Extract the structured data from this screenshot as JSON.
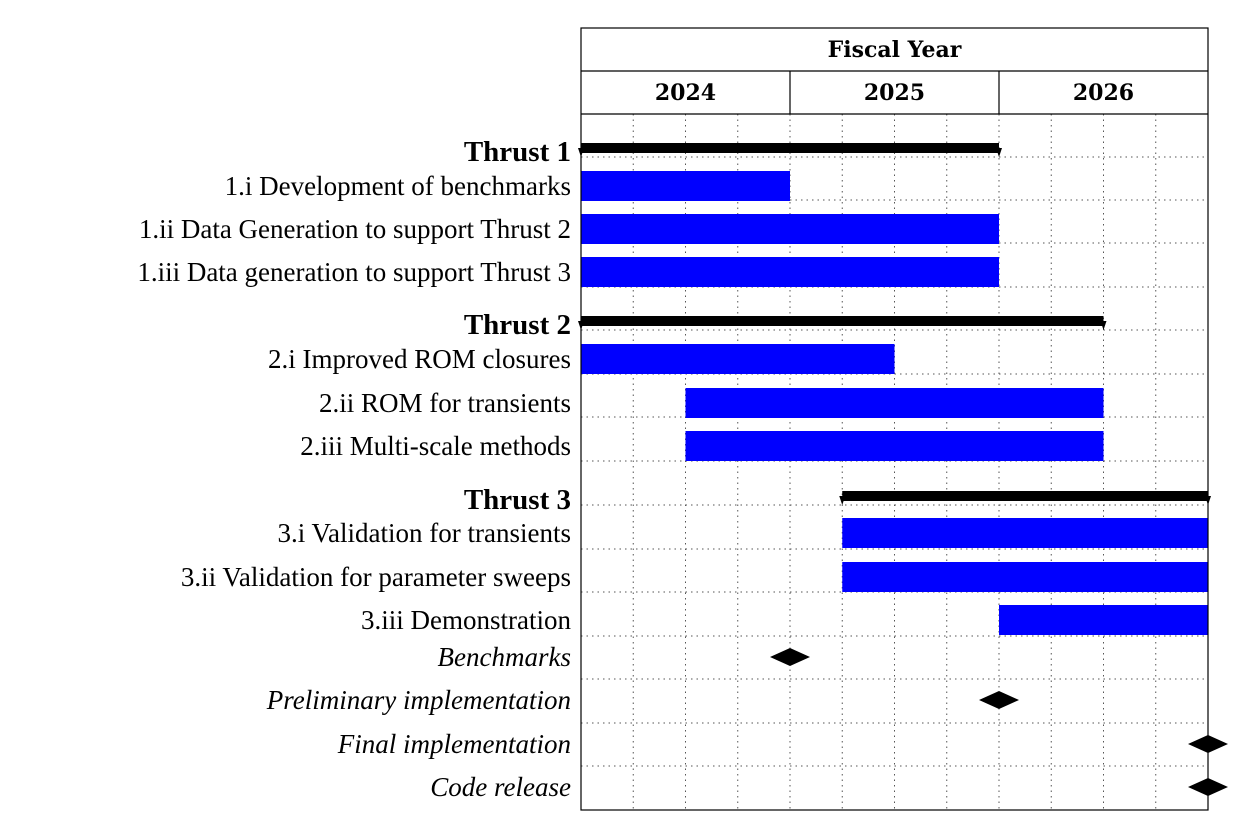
{
  "chart_data": {
    "type": "gantt",
    "header": {
      "title": "Fiscal Year",
      "years": [
        "2024",
        "2025",
        "2026"
      ]
    },
    "time_unit": "quarter",
    "domain_quarters": [
      0,
      12
    ],
    "grid": true,
    "rows": [
      {
        "kind": "group",
        "label": "Thrust 1",
        "start": 0,
        "end": 8
      },
      {
        "kind": "task",
        "label": "1.i Development of benchmarks",
        "start": 0,
        "end": 4
      },
      {
        "kind": "task",
        "label": "1.ii Data Generation to support Thrust 2",
        "start": 0,
        "end": 8
      },
      {
        "kind": "task",
        "label": "1.iii Data generation to support Thrust 3",
        "start": 0,
        "end": 8
      },
      {
        "kind": "group",
        "label": "Thrust 2",
        "start": 0,
        "end": 10
      },
      {
        "kind": "task",
        "label": "2.i Improved ROM closures",
        "start": 0,
        "end": 6
      },
      {
        "kind": "task",
        "label": "2.ii ROM for transients",
        "start": 2,
        "end": 10
      },
      {
        "kind": "task",
        "label": "2.iii Multi-scale methods",
        "start": 2,
        "end": 10
      },
      {
        "kind": "group",
        "label": "Thrust 3",
        "start": 5,
        "end": 12
      },
      {
        "kind": "task",
        "label": "3.i Validation for transients",
        "start": 5,
        "end": 12
      },
      {
        "kind": "task",
        "label": "3.ii Validation for parameter sweeps",
        "start": 5,
        "end": 12
      },
      {
        "kind": "task",
        "label": "3.iii Demonstration",
        "start": 8,
        "end": 12
      },
      {
        "kind": "milestone",
        "label": "Benchmarks",
        "at": 4
      },
      {
        "kind": "milestone",
        "label": "Preliminary implementation",
        "at": 8
      },
      {
        "kind": "milestone",
        "label": "Final implementation",
        "at": 12
      },
      {
        "kind": "milestone",
        "label": "Code release",
        "at": 12
      }
    ],
    "colors": {
      "task_bar": "#0000ff",
      "group_bar": "#000000",
      "milestone": "#000000",
      "grid": "#555555"
    }
  }
}
